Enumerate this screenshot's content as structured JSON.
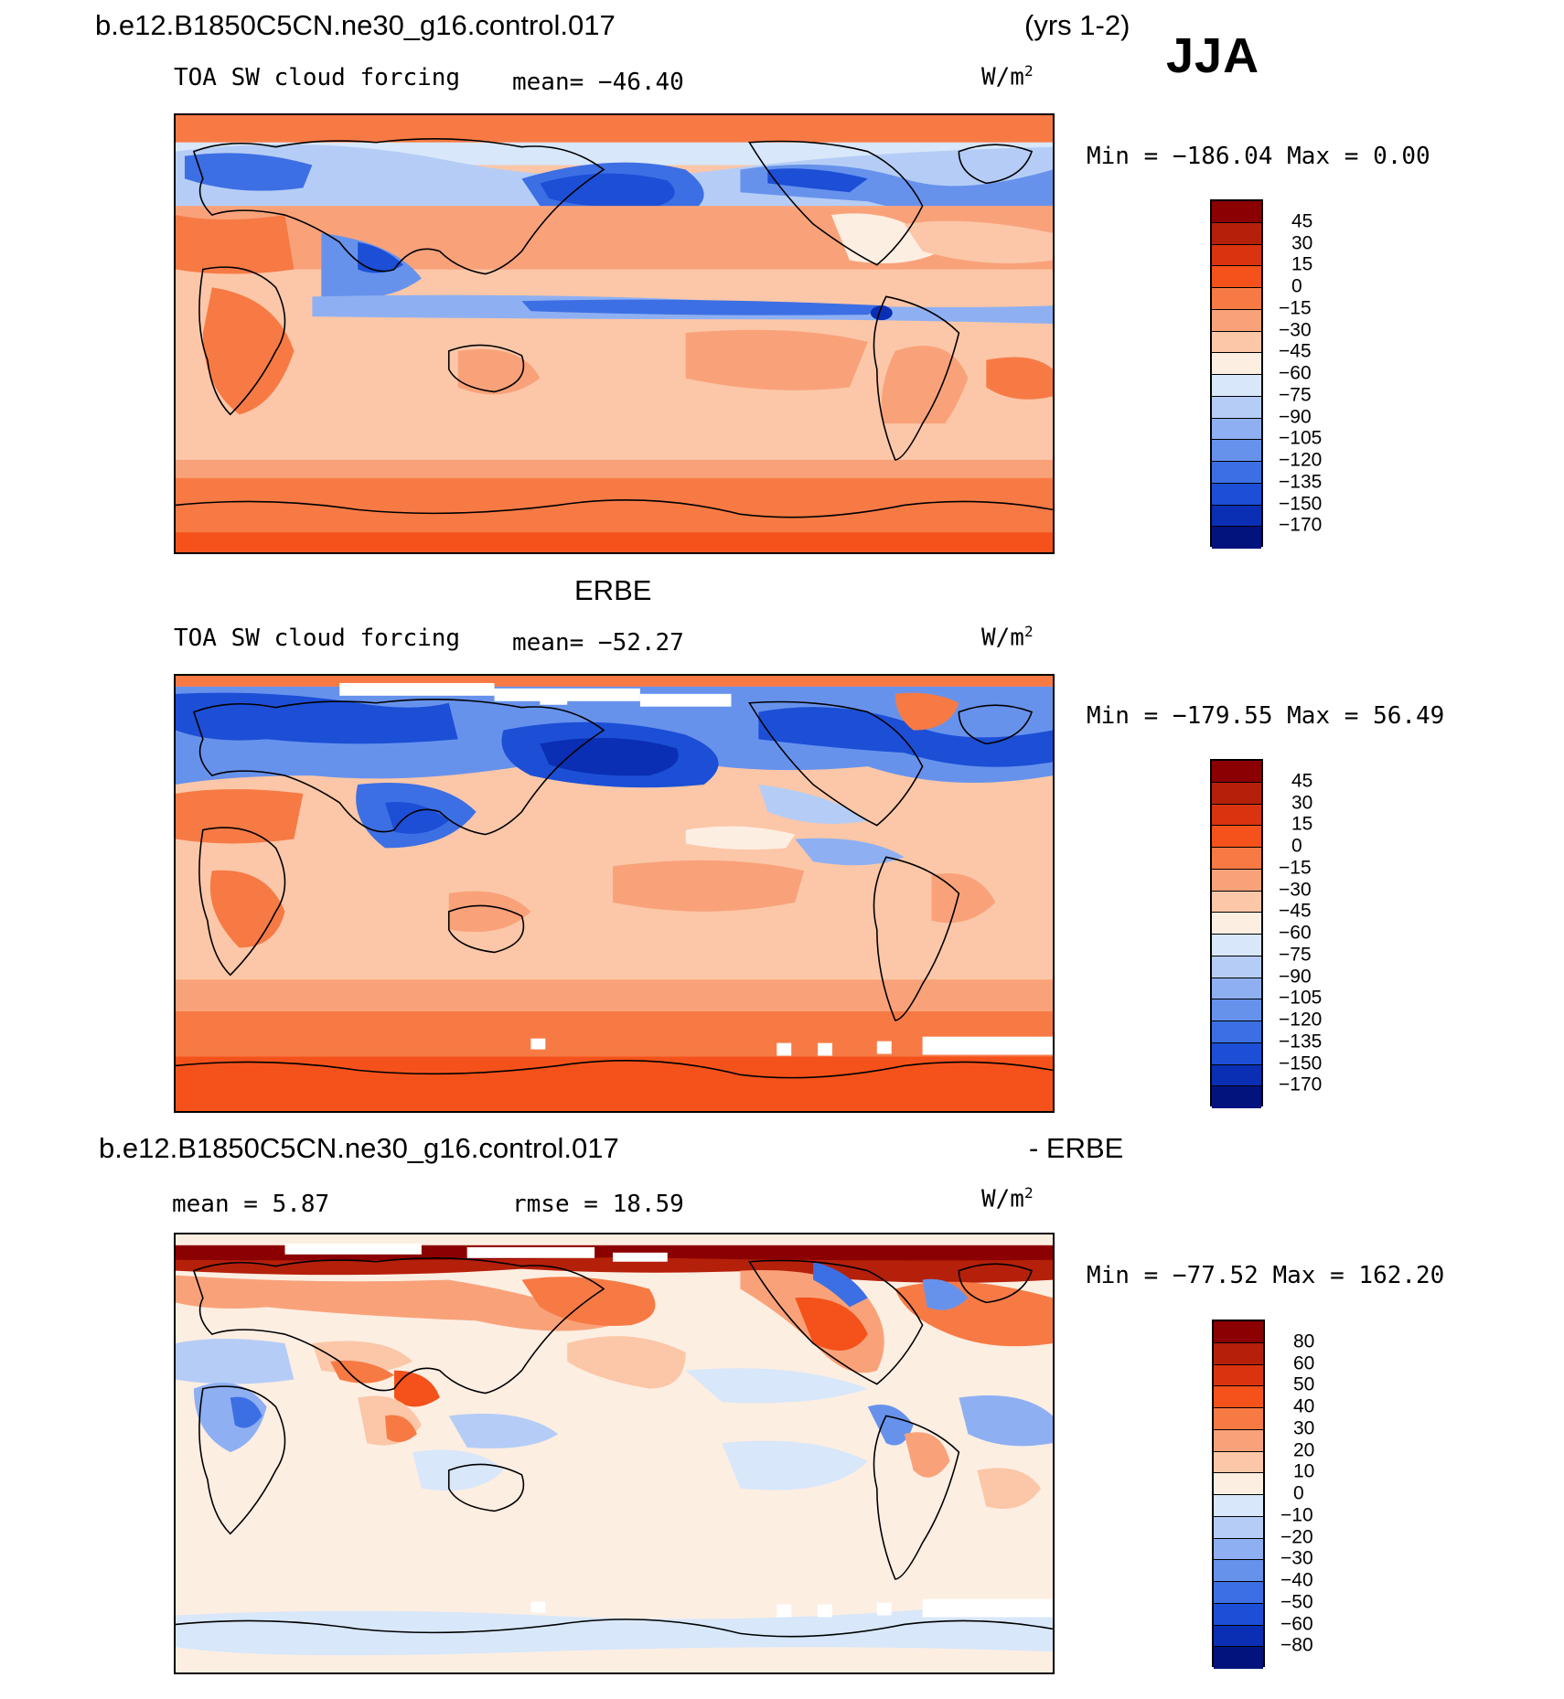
{
  "header": {
    "case_name": "b.e12.B1850C5CN.ne30_g16.control.017",
    "years": "(yrs 1-2)",
    "season": "JJA"
  },
  "panels": [
    {
      "id": "model",
      "variable": "TOA SW cloud forcing",
      "stat_label": "mean= −46.40",
      "units_base": "W/m",
      "units_exp": "2",
      "minmax": "Min = −186.04 Max =    0.00"
    },
    {
      "id": "obs",
      "title": "ERBE",
      "variable": "TOA SW cloud forcing",
      "stat_label": "mean= −52.27",
      "units_base": "W/m",
      "units_exp": "2",
      "minmax": "Min = −179.55 Max =  56.49"
    },
    {
      "id": "diff",
      "title_left": "b.e12.B1850C5CN.ne30_g16.control.017",
      "title_right": "- ERBE",
      "mean_label": "mean =    5.87",
      "rmse_label": "rmse =   18.59",
      "units_base": "W/m",
      "units_exp": "2",
      "minmax": "Min = −77.52 Max = 162.20"
    }
  ],
  "colorbars": {
    "abs_levels": [
      "45",
      "30",
      "15",
      "0",
      "−15",
      "−30",
      "−45",
      "−60",
      "−75",
      "−90",
      "−105",
      "−120",
      "−135",
      "−150",
      "−170"
    ],
    "abs_colors": [
      "#8b0000",
      "#b5200a",
      "#d9340f",
      "#f4521a",
      "#f77a45",
      "#f9a27a",
      "#fbc7a8",
      "#fdeee2",
      "#d8e7fa",
      "#b5cdf6",
      "#8eb0f2",
      "#6792ec",
      "#3d6fe4",
      "#1c4fd6",
      "#0a2fb4",
      "#02137d"
    ],
    "diff_levels": [
      "80",
      "60",
      "50",
      "40",
      "30",
      "20",
      "10",
      "0",
      "−10",
      "−20",
      "−30",
      "−40",
      "−50",
      "−60",
      "−80"
    ],
    "diff_colors": [
      "#8b0000",
      "#b5200a",
      "#d9340f",
      "#f4521a",
      "#f77a45",
      "#f9a27a",
      "#fbc7a8",
      "#fdeee2",
      "#d8e7fa",
      "#b5cdf6",
      "#8eb0f2",
      "#6792ec",
      "#3d6fe4",
      "#1c4fd6",
      "#0a2fb4",
      "#02137d"
    ]
  }
}
